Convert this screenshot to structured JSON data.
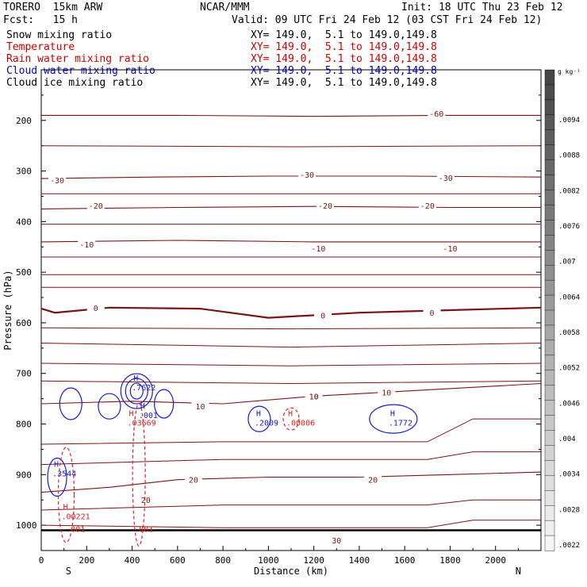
{
  "header": {
    "model": "TORERO  15km ARW",
    "org": "NCAR/MMM",
    "init": "Init: 18 UTC Thu 23 Feb 12",
    "fcst": "Fcst:   15 h",
    "valid": "Valid: 09 UTC Fri 24 Feb 12 (03 CST Fri 24 Feb 12)"
  },
  "legend": [
    {
      "label": "Snow mixing ratio",
      "xy": "XY= 149.0,  5.1 to 149.0,149.8",
      "color": "#000000"
    },
    {
      "label": "Temperature",
      "xy": "XY= 149.0,  5.1 to 149.0,149.8",
      "color": "#cc0000"
    },
    {
      "label": "Rain water mixing ratio",
      "xy": "XY= 149.0,  5.1 to 149.0,149.8",
      "color": "#cc0000"
    },
    {
      "label": "Cloud water mixing ratio",
      "xy": "XY= 149.0,  5.1 to 149.0,149.8",
      "color": "#0000cc"
    },
    {
      "label": "Cloud ice mixing ratio",
      "xy": "XY= 149.0,  5.1 to 149.0,149.8",
      "color": "#000000"
    }
  ],
  "colors": {
    "temperature": "#7a1414",
    "rain": "#e02020",
    "cloudwater": "#1a1ad0",
    "ground": "#000000"
  },
  "chart_data": {
    "type": "line",
    "xlabel": "Distance (km)",
    "ylabel": "Pressure (hPa)",
    "xlim": [
      0,
      2200
    ],
    "ylim": [
      1050,
      100
    ],
    "xticks": [
      0,
      200,
      400,
      600,
      800,
      1000,
      1200,
      1400,
      1600,
      1800,
      2000
    ],
    "yticks": [
      200,
      300,
      400,
      500,
      600,
      700,
      800,
      900,
      1000
    ],
    "x_ends": {
      "left": "S",
      "right": "N"
    },
    "temperature_contours": [
      {
        "level": -60,
        "points": [
          [
            0,
            190
          ],
          [
            600,
            190
          ],
          [
            1200,
            192
          ],
          [
            1800,
            190
          ],
          [
            2200,
            190
          ]
        ],
        "labels": [
          [
            1740,
            186
          ]
        ]
      },
      {
        "level": -30,
        "points": [
          [
            0,
            315
          ],
          [
            500,
            312
          ],
          [
            1000,
            310
          ],
          [
            1600,
            310
          ],
          [
            2200,
            312
          ]
        ],
        "labels": [
          [
            70,
            318
          ],
          [
            1170,
            307
          ],
          [
            1780,
            313
          ]
        ]
      },
      {
        "level": -20,
        "points": [
          [
            0,
            375
          ],
          [
            600,
            372
          ],
          [
            1200,
            370
          ],
          [
            1800,
            372
          ],
          [
            2200,
            372
          ]
        ],
        "labels": [
          [
            240,
            368
          ],
          [
            1250,
            368
          ],
          [
            1700,
            368
          ]
        ]
      },
      {
        "level": -10,
        "points": [
          [
            0,
            440
          ],
          [
            600,
            437
          ],
          [
            1200,
            440
          ],
          [
            1800,
            440
          ],
          [
            2200,
            440
          ]
        ],
        "labels": [
          [
            200,
            445
          ],
          [
            1220,
            453
          ],
          [
            1800,
            453
          ]
        ]
      },
      {
        "level": 0,
        "points": [
          [
            0,
            572
          ],
          [
            60,
            580
          ],
          [
            300,
            570
          ],
          [
            700,
            572
          ],
          [
            1000,
            590
          ],
          [
            1400,
            580
          ],
          [
            1800,
            575
          ],
          [
            2200,
            570
          ]
        ],
        "labels": [
          [
            240,
            570
          ],
          [
            1240,
            585
          ],
          [
            1720,
            580
          ]
        ]
      },
      {
        "level": 10,
        "points": [
          [
            0,
            760
          ],
          [
            400,
            755
          ],
          [
            800,
            760
          ],
          [
            1200,
            745
          ],
          [
            1600,
            735
          ],
          [
            2000,
            725
          ],
          [
            2200,
            720
          ]
        ],
        "labels": [
          [
            700,
            765
          ],
          [
            1200,
            745
          ],
          [
            1520,
            737
          ]
        ]
      },
      {
        "level": 20,
        "points": [
          [
            0,
            935
          ],
          [
            300,
            925
          ],
          [
            600,
            910
          ],
          [
            1000,
            905
          ],
          [
            1400,
            905
          ],
          [
            1800,
            900
          ],
          [
            2200,
            895
          ]
        ],
        "labels": [
          [
            670,
            910
          ],
          [
            1460,
            910
          ]
        ]
      }
    ],
    "cloud_water_maxima": [
      {
        "label": "H",
        "value": ".7622",
        "x": 420,
        "y": 730
      },
      {
        "label": "H",
        "value": ".001",
        "x": 450,
        "y": 785
      },
      {
        "label": "H",
        "value": ".2009",
        "x": 960,
        "y": 800
      },
      {
        "label": "H",
        "value": ".1772",
        "x": 1550,
        "y": 800
      },
      {
        "label": "H",
        "value": ".3544",
        "x": 70,
        "y": 900
      }
    ],
    "rain_water_maxima": [
      {
        "label": "H",
        "value": ".03669",
        "x": 400,
        "y": 800
      },
      {
        "label": "H",
        "value": ".00006",
        "x": 1100,
        "y": 800
      },
      {
        "label": "H",
        "value": ".00221",
        "x": 110,
        "y": 985
      },
      {
        "label": "",
        "value": ".001",
        "x": 130,
        "y": 1010
      },
      {
        "label": "",
        "value": ".001",
        "x": 430,
        "y": 1010
      }
    ],
    "extra_labels": [
      {
        "text": "10",
        "x": 1200,
        "y": 745
      },
      {
        "text": "20",
        "x": 460,
        "y": 950
      },
      {
        "text": "30",
        "x": 1300,
        "y": 1030
      }
    ]
  },
  "colorbar": {
    "unit": "g kg⁻¹",
    "labels": [
      ".0094",
      ".0088",
      ".0082",
      ".0076",
      ".007",
      ".0064",
      ".0058",
      ".0052",
      ".0046",
      ".004",
      ".0034",
      ".0028",
      ".0022"
    ]
  }
}
